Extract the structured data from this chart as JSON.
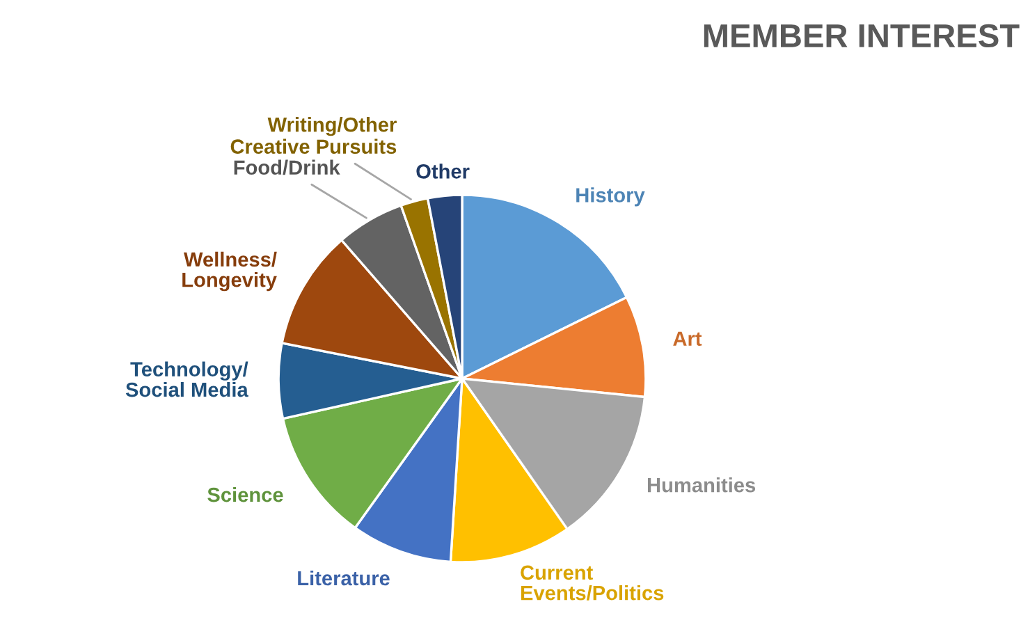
{
  "chart_data": {
    "type": "pie",
    "title": "MEMBER INTEREST",
    "categories": [
      "History",
      "Art",
      "Humanities",
      "Current Events/Politics",
      "Literature",
      "Science",
      "Technology/Social Media",
      "Wellness/Longevity",
      "Food/Drink",
      "Writing/Other Creative Pursuits",
      "Other"
    ],
    "values": [
      17.7,
      8.9,
      13.7,
      10.7,
      8.9,
      11.6,
      6.6,
      10.5,
      6.0,
      2.4,
      3.0
    ],
    "colors": [
      "#5b9bd5",
      "#ed7d31",
      "#a5a5a5",
      "#ffc000",
      "#4472c4",
      "#70ad47",
      "#255e91",
      "#9e480e",
      "#636363",
      "#997300",
      "#264478"
    ],
    "legend": false
  }
}
